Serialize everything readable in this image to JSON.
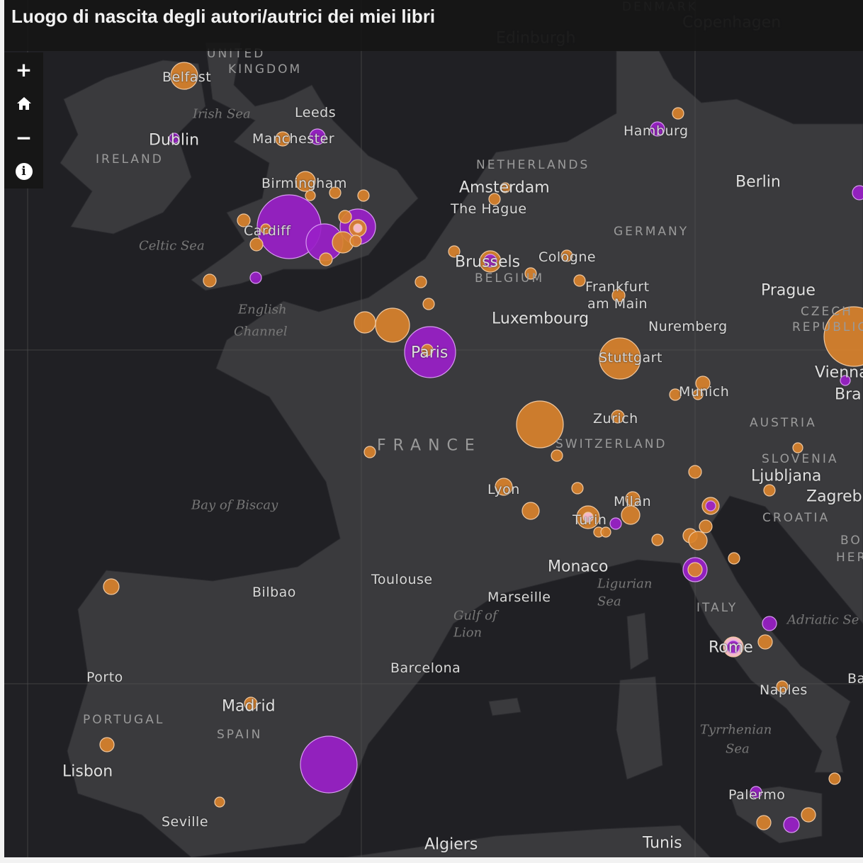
{
  "title": "Luogo di nascita degli autori/autrici dei miei libri",
  "controls": {
    "zoom_in": "+",
    "home_icon": "home",
    "zoom_out": "−",
    "info": "i"
  },
  "colors": {
    "sea": "#202024",
    "land": "#3a3a3d",
    "marker_orange": "#d9822b",
    "marker_purple": "#9a1fc8",
    "marker_stroke": "#f0c8a0"
  },
  "labels": {
    "cities": [
      "Belfast",
      "Dublin",
      "Leeds",
      "Manchester",
      "Birmingham",
      "Cardiff",
      "Amsterdam",
      "The Hague",
      "Brussels",
      "Cologne",
      "Frankfurt",
      "am Main",
      "Luxembourg",
      "Nuremberg",
      "Prague",
      "Hamburg",
      "Berlin",
      "Paris",
      "Stuttgart",
      "Munich",
      "Zurich",
      "Vienna",
      "Bra",
      "Ljubljana",
      "Zagreb",
      "Lyon",
      "Milan",
      "Turin",
      "Monaco",
      "Marseille",
      "Toulouse",
      "Bilbao",
      "Barcelona",
      "Porto",
      "Madrid",
      "Lisbon",
      "Seville",
      "Rome",
      "Naples",
      "Palermo",
      "Algiers",
      "Tunis",
      "Ba",
      "Edinburgh",
      "Copenhagen"
    ],
    "countries": [
      "UNITED",
      "KINGDOM",
      "IRELAND",
      "NETHERLANDS",
      "GERMANY",
      "BELGIUM",
      "CZECH",
      "REPUBLIC",
      "AUSTRIA",
      "SWITZERLAND",
      "SLOVENIA",
      "CROATIA",
      "BO",
      "HER",
      "ITALY",
      "PORTUGAL",
      "SPAIN",
      "DENMARK",
      "FRANCE"
    ],
    "seas": [
      "Irish Sea",
      "Celtic Sea",
      "English",
      "Channel",
      "Bay of Biscay",
      "Gulf of",
      "Lion",
      "Ligurian",
      "Sea",
      "Adriatic Se",
      "Tyrrhenian",
      "Sea"
    ]
  }
}
